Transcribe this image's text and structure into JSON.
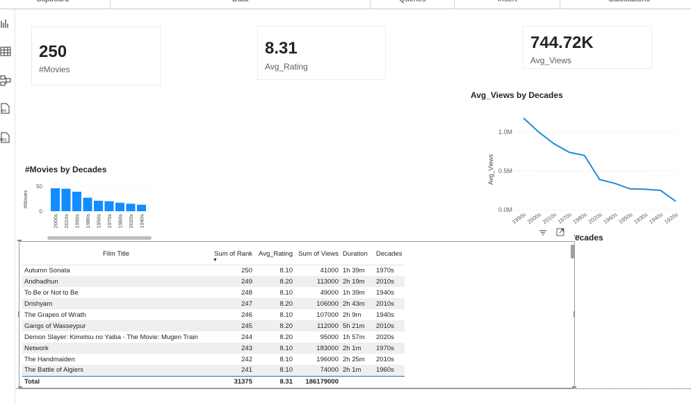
{
  "ribbon": {
    "groups": [
      "Clipboard",
      "Data",
      "Queries",
      "Insert",
      "Calculations"
    ]
  },
  "rail": {
    "icons": [
      "report-view-icon",
      "table-view-icon",
      "model-view-icon",
      "dax-query-icon",
      "tmdl-view-icon"
    ],
    "dax_label": "AX",
    "tmdl_label": "MDL"
  },
  "cards": [
    {
      "value": "250",
      "label": "#Movies"
    },
    {
      "value": "8.31",
      "label": "Avg_Rating"
    },
    {
      "value": "744.72K",
      "label": "Avg_Views"
    }
  ],
  "movies_chart": {
    "title": "#Movies by Decades",
    "chart_data": {
      "type": "bar",
      "title": "#Movies by Decades",
      "ylabel": "#Movies",
      "categories": [
        "2000s",
        "2010s",
        "1990s",
        "1980s",
        "1950s",
        "1970s",
        "1960s",
        "2020s",
        "1940s"
      ],
      "values": [
        46,
        45,
        39,
        27,
        21,
        20,
        17,
        15,
        13
      ],
      "yticks": [
        "50",
        "0"
      ],
      "ylim": [
        0,
        50
      ]
    }
  },
  "views_chart": {
    "title": "Avg_Views by Decades",
    "xlabel_partial": "ecades",
    "chart_data": {
      "type": "line",
      "title": "Avg_Views by Decades",
      "ylabel": "Avg_Views",
      "categories": [
        "1990s",
        "2000s",
        "2010s",
        "1970s",
        "1980s",
        "2020s",
        "1960s",
        "1950s",
        "1930s",
        "1940s",
        "1920s"
      ],
      "values": [
        1180000,
        1000000,
        850000,
        740000,
        700000,
        390000,
        340000,
        270000,
        265000,
        250000,
        110000
      ],
      "yticks": [
        "1.0M",
        "0.5M",
        "0.0M"
      ],
      "ylim": [
        0,
        1250000
      ]
    }
  },
  "table": {
    "columns": [
      "Film Title",
      "Sum of Rank",
      "Avg_Rating",
      "Sum of Views",
      "Duration",
      "Decades"
    ],
    "sort_indicator": "▼",
    "rows": [
      [
        "Autumn Sonata",
        "250",
        "8.10",
        "41000",
        "1h 39m",
        "1970s"
      ],
      [
        "Andhadhun",
        "249",
        "8.20",
        "113000",
        "2h 19m",
        "2010s"
      ],
      [
        "To Be or Not to Be",
        "248",
        "8.10",
        "49000",
        "1h 39m",
        "1940s"
      ],
      [
        "Drishyam",
        "247",
        "8.20",
        "106000",
        "2h 43m",
        "2010s"
      ],
      [
        "The Grapes of Wrath",
        "246",
        "8.10",
        "107000",
        "2h 9m",
        "1940s"
      ],
      [
        "Gangs of Wasseypur",
        "245",
        "8.20",
        "112000",
        "5h 21m",
        "2010s"
      ],
      [
        "Demon Slayer: Kimetsu no Yaiba - The Movie: Mugen Train",
        "244",
        "8.20",
        "95000",
        "1h 57m",
        "2020s"
      ],
      [
        "Network",
        "243",
        "8.10",
        "183000",
        "2h 1m",
        "1970s"
      ],
      [
        "The Handmaiden",
        "242",
        "8.10",
        "196000",
        "2h 25m",
        "2010s"
      ],
      [
        "The Battle of Algiers",
        "241",
        "8.10",
        "74000",
        "2h 1m",
        "1960s"
      ]
    ],
    "total": [
      "Total",
      "31375",
      "8.31",
      "186179000",
      "",
      ""
    ]
  },
  "visual_toolbar": {
    "filter_icon": "filter-icon",
    "focus_icon": "focus-mode-icon",
    "more_label": "..."
  },
  "colors": {
    "accent": "#118dff",
    "line": "#1f8ad6"
  }
}
